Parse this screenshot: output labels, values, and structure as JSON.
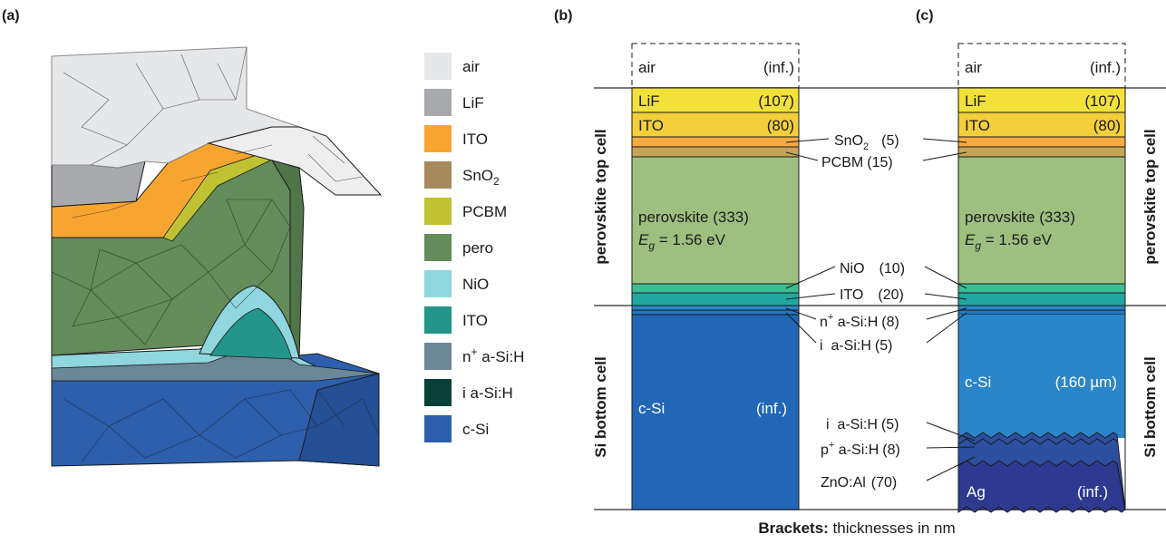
{
  "panels": {
    "a": "(a)",
    "b": "(b)",
    "c": "(c)"
  },
  "legend": [
    {
      "label": "air",
      "sup": "",
      "sub": "",
      "color": "#e6e7e9"
    },
    {
      "label": "LiF",
      "sup": "",
      "sub": "",
      "color": "#a7a9ac"
    },
    {
      "label": "ITO",
      "sup": "",
      "sub": "",
      "color": "#f7a530"
    },
    {
      "label": "SnO",
      "sup": "",
      "sub": "2",
      "color": "#a68a5c"
    },
    {
      "label": "PCBM",
      "sup": "",
      "sub": "",
      "color": "#bec233"
    },
    {
      "label": "pero",
      "sup": "",
      "sub": "",
      "color": "#638c5a"
    },
    {
      "label": "NiO",
      "sup": "",
      "sub": "",
      "color": "#8fd6de"
    },
    {
      "label": "ITO",
      "sup": "",
      "sub": "",
      "color": "#23958a"
    },
    {
      "label": " a-Si:H",
      "sup": "+",
      "pre": "n",
      "sub": "",
      "color": "#6b8898"
    },
    {
      "label": "i a-Si:H",
      "sup": "",
      "sub": "",
      "color": "#083f36"
    },
    {
      "label": "c-Si",
      "sup": "",
      "sub": "",
      "color": "#2e5fad"
    }
  ],
  "stack_b": {
    "air": {
      "name": "air",
      "thick": "(inf.)"
    },
    "lif": {
      "name": "LiF",
      "thick": "(107)"
    },
    "ito": {
      "name": "ITO",
      "thick": "(80)"
    },
    "pero": {
      "name": "perovskite (333)",
      "eg_sym": "E",
      "eg_sub": "g",
      "eg_val": " = 1.56 eV"
    },
    "csi": {
      "name": "c-Si",
      "thick": "(inf.)"
    }
  },
  "stack_c": {
    "air": {
      "name": "air",
      "thick": "(inf.)"
    },
    "lif": {
      "name": "LiF",
      "thick": "(107)"
    },
    "ito": {
      "name": "ITO",
      "thick": "(80)"
    },
    "pero": {
      "name": "perovskite (333)",
      "eg_sym": "E",
      "eg_sub": "g",
      "eg_val": " = 1.56 eV"
    },
    "csi": {
      "name": "c-Si",
      "thick": "(160 µm)"
    },
    "ag": {
      "name": "Ag",
      "thick": "(inf.)"
    }
  },
  "annotations": {
    "sno2": {
      "name": "SnO",
      "sub": "2",
      "thick": "(5)"
    },
    "pcbm": {
      "name": "PCBM",
      "thick": "(15)"
    },
    "nio": {
      "name": "NiO",
      "thick": "(10)"
    },
    "ito": {
      "name": "ITO",
      "thick": "(20)"
    },
    "n_asi": {
      "pre": "n",
      "sup": "+",
      "name": " a-Si:H",
      "thick": "(8)"
    },
    "i_asi": {
      "name": "i  a-Si:H",
      "thick": "(5)"
    },
    "i_asi_rear": {
      "name": "i  a-Si:H",
      "thick": "(5)"
    },
    "p_asi": {
      "pre": "p",
      "sup": "+",
      "name": " a-Si:H",
      "thick": "(8)"
    },
    "zno": {
      "name": "ZnO:Al",
      "thick": "(70)"
    }
  },
  "side_labels": {
    "top": "perovskite top cell",
    "bottom": "Si bottom cell"
  },
  "caption": {
    "bold": "Brackets:",
    "rest": " thicknesses in nm"
  },
  "colors": {
    "air": "#ffffff",
    "lif": "#f1e13a",
    "ito": "#f3cf3b",
    "sno2": "#f7a943",
    "pcbm": "#c8a457",
    "pero": "#9dc080",
    "nio": "#3dbd91",
    "ito_rear": "#22a7a0",
    "csi_b": "#2267b5",
    "csi_c": "#2b86c9",
    "asi_rear": "#2d4fa0",
    "ag": "#2e3990"
  }
}
